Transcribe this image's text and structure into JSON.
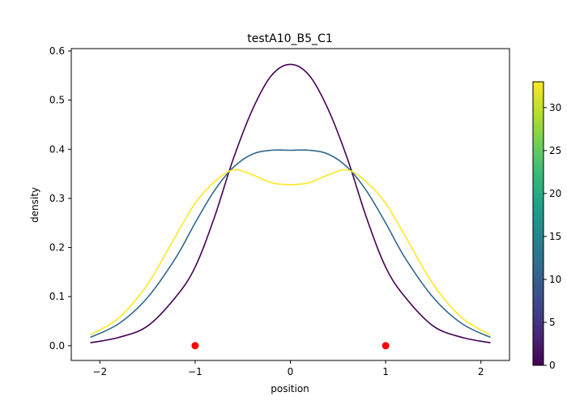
{
  "chart_data": {
    "type": "line",
    "title": "testA10_B5_C1",
    "xlabel": "position",
    "ylabel": "density",
    "xlim": [
      -2.3,
      2.3
    ],
    "ylim": [
      -0.03,
      0.605
    ],
    "xticks": [
      -2,
      -1,
      0,
      1,
      2
    ],
    "xtick_labels": [
      "−2",
      "−1",
      "0",
      "1",
      "2"
    ],
    "yticks": [
      0.0,
      0.1,
      0.2,
      0.3,
      0.4,
      0.5,
      0.6
    ],
    "ytick_labels": [
      "0.0",
      "0.1",
      "0.2",
      "0.3",
      "0.4",
      "0.5",
      "0.6"
    ],
    "x": [
      -2.1,
      -1.8,
      -1.5,
      -1.2,
      -1.0,
      -0.8,
      -0.6,
      -0.4,
      -0.2,
      0.0,
      0.2,
      0.4,
      0.6,
      0.8,
      1.0,
      1.2,
      1.5,
      1.8,
      2.1
    ],
    "series": [
      {
        "color": "#440154",
        "colorbar_value": 0,
        "values": [
          0.006,
          0.017,
          0.04,
          0.1,
          0.16,
          0.26,
          0.38,
          0.48,
          0.55,
          0.573,
          0.55,
          0.48,
          0.38,
          0.26,
          0.16,
          0.1,
          0.04,
          0.017,
          0.006
        ]
      },
      {
        "color": "#31688e",
        "colorbar_value": 16,
        "values": [
          0.017,
          0.045,
          0.098,
          0.18,
          0.25,
          0.315,
          0.363,
          0.39,
          0.398,
          0.398,
          0.398,
          0.39,
          0.363,
          0.315,
          0.25,
          0.18,
          0.098,
          0.045,
          0.017
        ]
      },
      {
        "color": "#fde725",
        "colorbar_value": 33,
        "values": [
          0.022,
          0.057,
          0.125,
          0.225,
          0.29,
          0.333,
          0.358,
          0.348,
          0.332,
          0.328,
          0.332,
          0.348,
          0.358,
          0.333,
          0.29,
          0.225,
          0.125,
          0.057,
          0.022
        ]
      }
    ],
    "markers": {
      "color": "#ff0000",
      "points": [
        [
          -1,
          0
        ],
        [
          1,
          0
        ]
      ]
    },
    "colorbar": {
      "min": 0,
      "max": 33,
      "ticks": [
        0,
        5,
        10,
        15,
        20,
        25,
        30
      ],
      "tick_labels": [
        "0",
        "5",
        "10",
        "15",
        "20",
        "25",
        "30"
      ],
      "colormap": "viridis",
      "stops": [
        "#440154",
        "#482878",
        "#3e4989",
        "#31688e",
        "#26828e",
        "#1f9e89",
        "#35b779",
        "#6ece58",
        "#b5de2b",
        "#fde725"
      ]
    },
    "grid": false
  }
}
